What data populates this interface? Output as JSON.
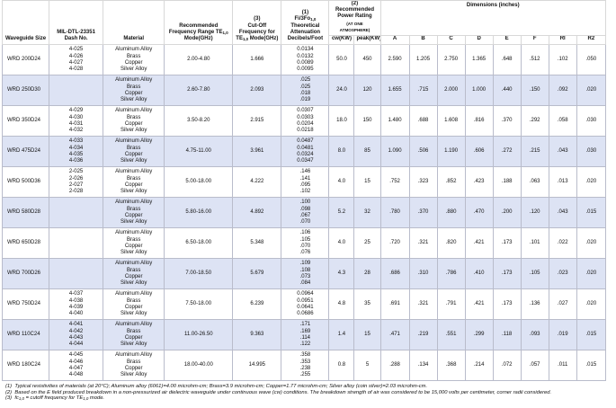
{
  "header": {
    "waveguide": "Waveguide Size",
    "dash": "MIL-DTL-23351 Dash No.",
    "material": "Material",
    "frequency": {
      "parts": [
        "Recommended Frequency Range TE",
        "1,0",
        " Mode(GHz)"
      ]
    },
    "cutoff": {
      "note": "(3)",
      "parts": [
        "Cut-Off Frequency for TE",
        "1,0",
        " Mode(GHz)"
      ]
    },
    "attenuation": {
      "note": "(1)",
      "parts": [
        "Fi/3Fo",
        "1,0",
        " Theoretical Attenuation Decibels/Foot"
      ]
    },
    "power": {
      "note": "(2)",
      "title": "Recommended Power Rating",
      "condition": "(AT ONE ATMOSPHERE)",
      "cw": "cw(KW)",
      "peak": "peak(KW)"
    },
    "dimensions": {
      "title": "Dimensions (inches)",
      "columns": [
        "A",
        "B",
        "C",
        "D",
        "E",
        "F",
        "RI",
        "R2"
      ]
    }
  },
  "table": {
    "rows": [
      {
        "size": "WRD 200D24",
        "dash": [
          "4-025",
          "4-026",
          "4-027",
          "4-028"
        ],
        "materials": [
          "Aluminum Alloy",
          "Brass",
          "Copper",
          "Silver Alloy"
        ],
        "frequency": "2.00-4.80",
        "cutoff": "1.666",
        "attenuation": [
          "0.0134",
          "0.0132",
          "0.0089",
          "0.0095"
        ],
        "cw": "50.0",
        "peak": "450",
        "dims": [
          "2.590",
          "1.205",
          "2.750",
          "1.365",
          ".648",
          ".512",
          ".102",
          ".050"
        ]
      },
      {
        "size": "WRD 250D30",
        "dash": [],
        "materials": [
          "Aluminum Alloy",
          "Brass",
          "Copper",
          "Silver Alloy"
        ],
        "frequency": "2.60-7.80",
        "cutoff": "2.093",
        "attenuation": [
          ".025",
          ".025",
          ".018",
          ".019"
        ],
        "cw": "24.0",
        "peak": "120",
        "dims": [
          "1.655",
          ".715",
          "2.000",
          "1.000",
          ".440",
          ".150",
          ".092",
          ".020"
        ]
      },
      {
        "size": "WRD 350D24",
        "dash": [
          "4-029",
          "4-030",
          "4-031",
          "4-032"
        ],
        "materials": [
          "Aluminum Alloy",
          "Brass",
          "Copper",
          "Silver Alloy"
        ],
        "frequency": "3.50-8.20",
        "cutoff": "2.915",
        "attenuation": [
          "0.0307",
          "0.0303",
          "0.0204",
          "0.0218"
        ],
        "cw": "18.0",
        "peak": "150",
        "dims": [
          "1.480",
          ".688",
          "1.608",
          ".816",
          ".370",
          ".292",
          ".058",
          ".030"
        ]
      },
      {
        "size": "WRD 475D24",
        "dash": [
          "4-033",
          "4-034",
          "4-035",
          "4-036"
        ],
        "materials": [
          "Aluminum Alloy",
          "Brass",
          "Copper",
          "Silver Alloy"
        ],
        "frequency": "4.75-11.00",
        "cutoff": "3.961",
        "attenuation": [
          "0.0487",
          "0.0481",
          "0.0324",
          "0.0347"
        ],
        "cw": "8.0",
        "peak": "85",
        "dims": [
          "1.090",
          ".506",
          "1.190",
          ".606",
          ".272",
          ".215",
          ".043",
          ".030"
        ]
      },
      {
        "size": "WRD 500D36",
        "dash": [
          "2-025",
          "2-026",
          "2-027",
          "2-028"
        ],
        "materials": [
          "Aluminum Alloy",
          "Brass",
          "Copper",
          "Silver Alloy"
        ],
        "frequency": "5.00-18.00",
        "cutoff": "4.222",
        "attenuation": [
          ".146",
          ".141",
          ".095",
          ".102"
        ],
        "cw": "4.0",
        "peak": "15",
        "dims": [
          ".752",
          ".323",
          ".852",
          ".423",
          ".188",
          ".063",
          ".013",
          ".020"
        ]
      },
      {
        "size": "WRD 580D28",
        "dash": [],
        "materials": [
          "Aluminum Alloy",
          "Brass",
          "Copper",
          "Silver Alloy"
        ],
        "frequency": "5.80-16.00",
        "cutoff": "4.892",
        "attenuation": [
          ".100",
          ".098",
          ".067",
          ".070"
        ],
        "cw": "5.2",
        "peak": "32",
        "dims": [
          ".780",
          ".370",
          ".880",
          ".470",
          ".200",
          ".120",
          ".043",
          ".015"
        ]
      },
      {
        "size": "WRD 650D28",
        "dash": [],
        "materials": [
          "Aluminum Alloy",
          "Brass",
          "Copper",
          "Silver Alloy"
        ],
        "frequency": "6.50-18.00",
        "cutoff": "5.348",
        "attenuation": [
          ".106",
          ".105",
          ".070",
          ".076"
        ],
        "cw": "4.0",
        "peak": "25",
        "dims": [
          ".720",
          ".321",
          ".820",
          ".421",
          ".173",
          ".101",
          ".022",
          ".020"
        ]
      },
      {
        "size": "WRD 700D26",
        "dash": [],
        "materials": [
          "Aluminum Alloy",
          "Brass",
          "Copper",
          "Silver Alloy"
        ],
        "frequency": "7.00-18.50",
        "cutoff": "5.679",
        "attenuation": [
          ".109",
          ".108",
          ".073",
          ".084"
        ],
        "cw": "4.3",
        "peak": "28",
        "dims": [
          ".686",
          ".310",
          ".786",
          ".410",
          ".173",
          ".105",
          ".023",
          ".020"
        ]
      },
      {
        "size": "WRD 750D24",
        "dash": [
          "4-037",
          "4-038",
          "4-039",
          "4-040"
        ],
        "materials": [
          "Aluminum Alloy",
          "Brass",
          "Copper",
          "Silver Alloy"
        ],
        "frequency": "7.50-18.00",
        "cutoff": "6.239",
        "attenuation": [
          "0.0964",
          "0.0951",
          "0.0641",
          "0.0686"
        ],
        "cw": "4.8",
        "peak": "35",
        "dims": [
          ".691",
          ".321",
          ".791",
          ".421",
          ".173",
          ".136",
          ".027",
          ".020"
        ]
      },
      {
        "size": "WRD 110C24",
        "dash": [
          "4-041",
          "4-042",
          "4-043",
          "4-044"
        ],
        "materials": [
          "Aluminum Alloy",
          "Brass",
          "Copper",
          "Silver Alloy"
        ],
        "frequency": "11.00-26.50",
        "cutoff": "9.363",
        "attenuation": [
          ".171",
          ".169",
          ".114",
          ".122"
        ],
        "cw": "1.4",
        "peak": "15",
        "dims": [
          ".471",
          ".219",
          ".551",
          ".299",
          ".118",
          ".093",
          ".019",
          ".015"
        ]
      },
      {
        "size": "WRD 180C24",
        "dash": [
          "4-045",
          "4-046",
          "4-047",
          "4-048"
        ],
        "materials": [
          "Aluminum Alloy",
          "Brass",
          "Copper",
          "Silver Alloy"
        ],
        "frequency": "18.00-40.00",
        "cutoff": "14.995",
        "attenuation": [
          ".358",
          ".353",
          ".238",
          ".255"
        ],
        "cw": "0.8",
        "peak": "5",
        "dims": [
          ".288",
          ".134",
          ".368",
          ".214",
          ".072",
          ".057",
          ".011",
          ".015"
        ]
      }
    ]
  },
  "footnotes": [
    {
      "note": "(1)",
      "parts": [
        "Typical resistivities of materials (at 20°C); Aluminum alloy (6061)=4.00 microhm-cm; Brass=3.9 microhm-cm; Copper=1.77 microhm-cm; Silver alloy (coin silver)=2.03 microhm-cm."
      ]
    },
    {
      "note": "(2)",
      "parts": [
        "Based on the E field produced breakdown in a non-pressurized air dielectric waveguide under continuous wave (cw) conditions. The breakdown strength of air was considered to be 15,000 volts per centimeter, corner radii considered."
      ]
    },
    {
      "note": "(3)",
      "parts": [
        "fc",
        "1,0",
        " = cutoff frequency for TE",
        "1,0",
        " mode."
      ]
    }
  ]
}
